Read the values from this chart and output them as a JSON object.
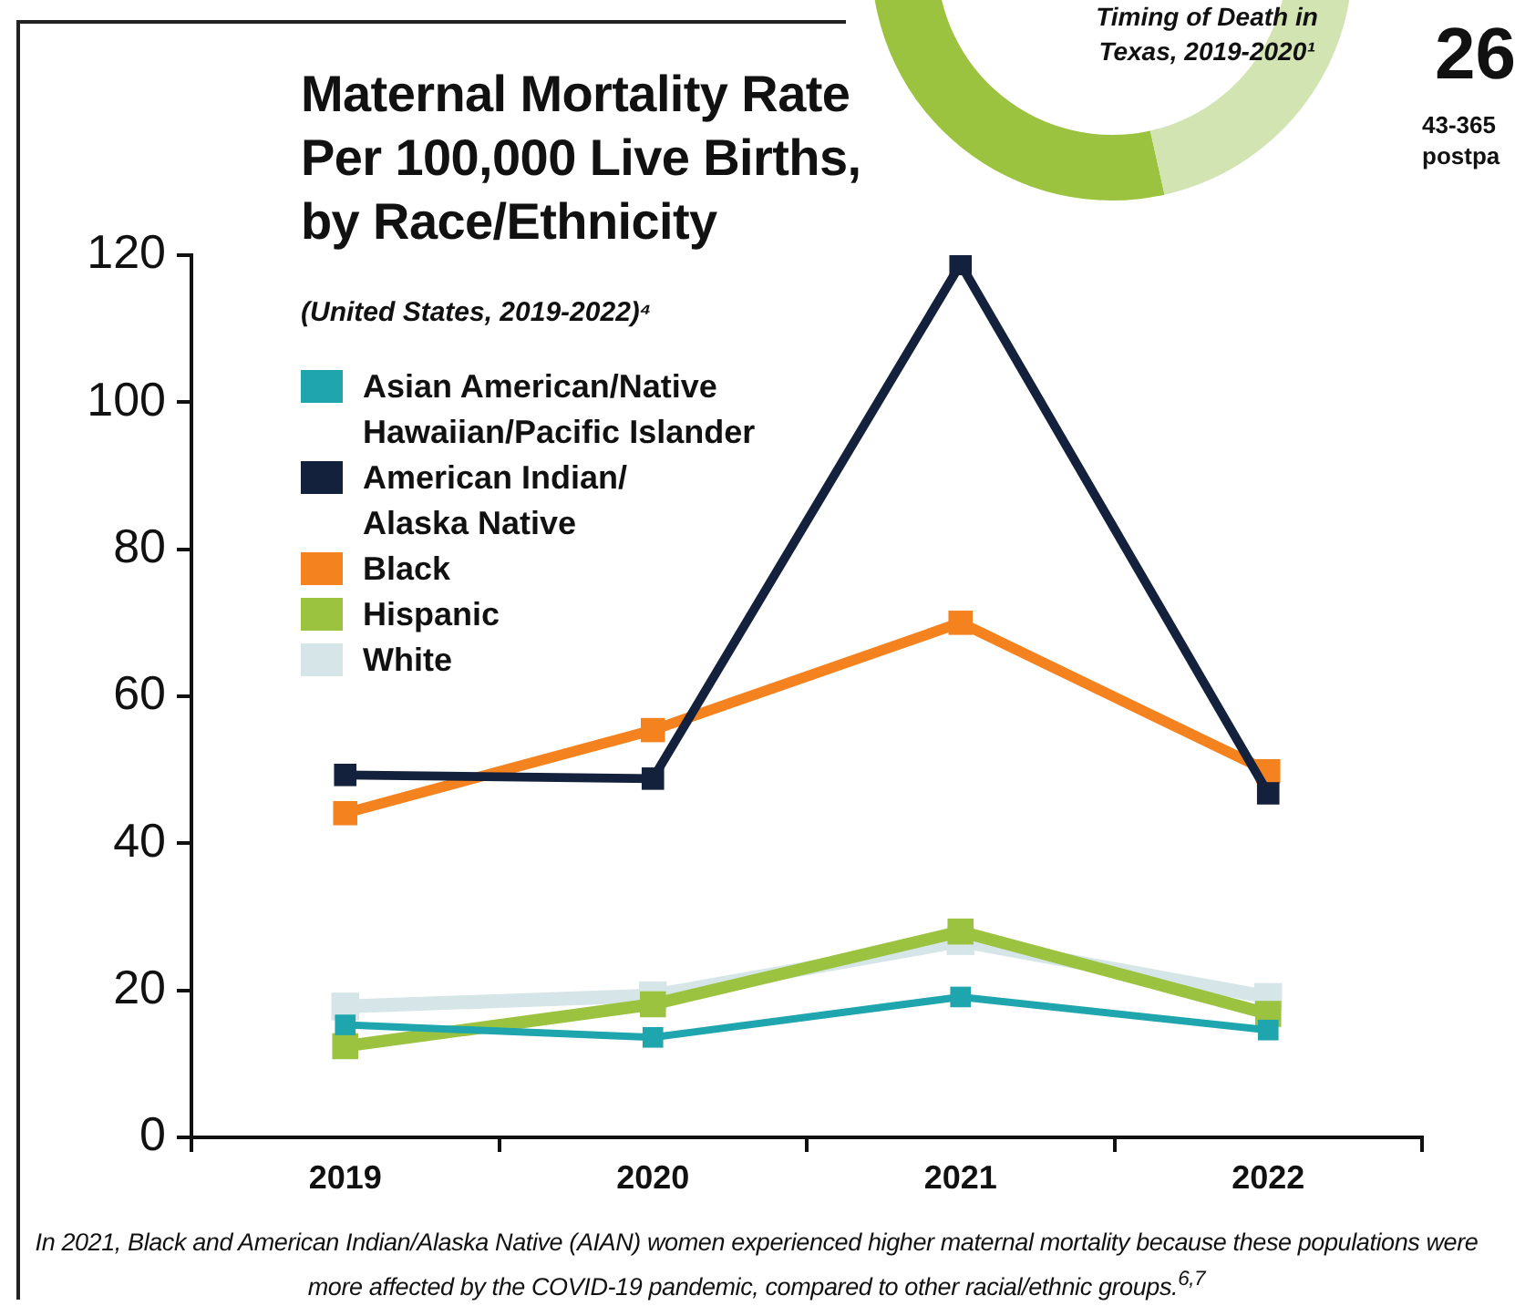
{
  "chart_data": [
    {
      "type": "line",
      "title": "Maternal Mortality Rate Per 100,000 Live Births, by Race/Ethnicity",
      "subtitle": "(United States, 2019-2022)⁴",
      "categories": [
        "2019",
        "2020",
        "2021",
        "2022"
      ],
      "series": [
        {
          "name": "Asian American/Native\nHawaiian/Pacific Islander",
          "color": "#1fa5ad",
          "values": [
            15.3,
            13.6,
            19.1,
            14.6
          ]
        },
        {
          "name": "American Indian/\nAlaska Native",
          "color": "#14213d",
          "values": [
            49.3,
            48.8,
            118.8,
            46.8
          ]
        },
        {
          "name": "Black",
          "color": "#f4831f",
          "values": [
            44.1,
            55.4,
            70.0,
            49.8
          ]
        },
        {
          "name": "Hispanic",
          "color": "#9bc33f",
          "values": [
            12.4,
            18.1,
            28.0,
            16.8
          ]
        },
        {
          "name": "White",
          "color": "#d6e6e8",
          "values": [
            17.8,
            19.3,
            26.7,
            19.1
          ]
        }
      ],
      "ylim": [
        0,
        120
      ],
      "yticks": [
        0,
        20,
        40,
        60,
        80,
        100,
        120
      ],
      "legend": "top left",
      "marker": "square",
      "annotations": [
        "In 2021, Black and American Indian/Alaska Native (AIAN) women experienced higher maternal mortality because these populations were more affected by the COVID-19 pandemic, compared to other racial/ethnic groups.$^{6,7}$"
      ]
    },
    {
      "type": "other",
      "title": "Timing of Death in Texas, 2019-2020¹",
      "annotations": [
        "26",
        "43-365",
        "postpa"
      ]
    }
  ]
}
